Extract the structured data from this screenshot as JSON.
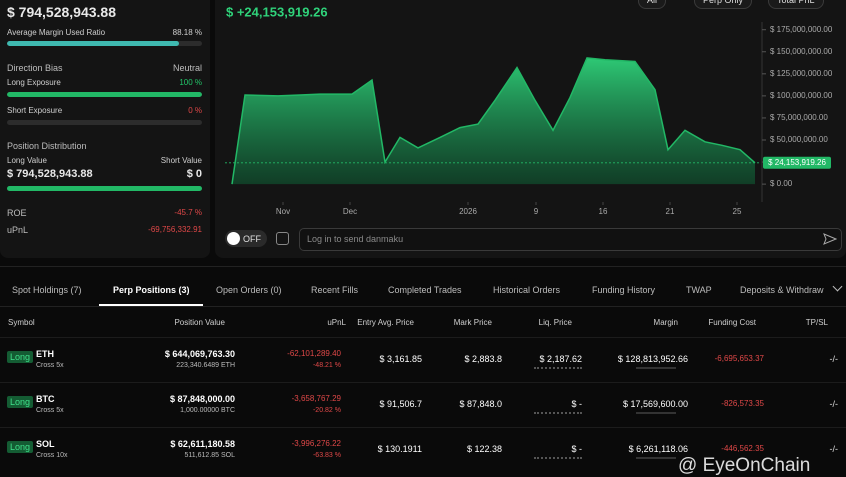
{
  "summary": {
    "total_value": "$ 794,528,943.88",
    "margin_ratio": {
      "name": "Average Margin Used Ratio",
      "value": 88.18,
      "label": "88.18 %"
    },
    "direction_bias": {
      "label": "Direction Bias",
      "value": "Neutral"
    },
    "long_exposure": {
      "name": "Long Exposure",
      "value": 100,
      "label": "100 %"
    },
    "short_exposure": {
      "name": "Short Exposure",
      "value": 0,
      "label": "0 %"
    },
    "distribution": {
      "title": "Position Distribution",
      "long_label": "Long Value",
      "short_label": "Short Value",
      "long_value": "$ 794,528,943.88",
      "short_value": "$ 0"
    },
    "roe": {
      "label": "ROE",
      "value": "-45.7 %"
    },
    "upnl": {
      "label": "uPnL",
      "value": "-69,756,332.91"
    }
  },
  "filters": [
    "All",
    "Perp Only",
    "Total PnL"
  ],
  "chart_data": {
    "type": "area",
    "title": "$ +24,153,919.26",
    "color": "#22b866",
    "x": [
      0,
      1.3,
      4.6,
      6.8,
      8.8,
      12,
      14,
      15.3,
      16.8,
      18.6,
      20.8,
      22.8,
      24.6,
      26.3,
      28.5,
      30.3,
      32.1,
      33.8,
      35.5,
      37.3,
      40.3,
      42.3,
      43.6,
      45.3,
      47.3,
      49,
      50.8,
      52.3
    ],
    "values": [
      0,
      101000000,
      100000000,
      101000000,
      102000000,
      102000000,
      118000000,
      25000000,
      53000000,
      41000000,
      53000000,
      64000000,
      68000000,
      95000000,
      132000000,
      95000000,
      61000000,
      98000000,
      143000000,
      141000000,
      139000000,
      107000000,
      39000000,
      61000000,
      48000000,
      44000000,
      39000000,
      24153919.26
    ],
    "last_value_label": "$ 24,153,919.26",
    "xlim": [
      -0.7,
      52.8
    ],
    "xticks": [
      {
        "value": 5.1,
        "label": "Nov"
      },
      {
        "value": 11.8,
        "label": "Dec"
      },
      {
        "value": 23.6,
        "label": "2026"
      },
      {
        "value": 30.4,
        "label": "9"
      },
      {
        "value": 37.1,
        "label": "16"
      },
      {
        "value": 43.8,
        "label": "21"
      },
      {
        "value": 50.5,
        "label": "25"
      }
    ],
    "ylim": [
      -18000000,
      186000000
    ],
    "yticks": [
      {
        "value": 0,
        "label": "$ 0.00"
      },
      {
        "value": 25000000,
        "label": "$ 25,000,000.00"
      },
      {
        "value": 50000000,
        "label": "$ 50,000,000.00"
      },
      {
        "value": 75000000,
        "label": "$ 75,000,000.00"
      },
      {
        "value": 100000000,
        "label": "$ 100,000,000.00"
      },
      {
        "value": 125000000,
        "label": "$ 125,000,000.00"
      },
      {
        "value": 150000000,
        "label": "$ 150,000,000.00"
      },
      {
        "value": 175000000,
        "label": "$ 175,000,000.00"
      }
    ]
  },
  "danmaku": {
    "toggle": "OFF",
    "placeholder": "Log in to send danmaku"
  },
  "tabs": [
    "Spot Holdings (7)",
    "Perp Positions (3)",
    "Open Orders (0)",
    "Recent Fills",
    "Completed Trades",
    "Historical Orders",
    "Funding History",
    "TWAP",
    "Deposits & Withdraw"
  ],
  "table": {
    "columns": [
      "Symbol",
      "Position Value",
      "uPnL",
      "Entry Avg. Price",
      "Mark Price",
      "Liq. Price",
      "Margin",
      "Funding Cost",
      "TP/SL"
    ],
    "rows": [
      {
        "side": "Long",
        "symbol": "ETH",
        "mode": "Cross 5x",
        "position_value": "$ 644,069,763.30",
        "size": "223,340.6489 ETH",
        "upnl": "-62,101,289.40",
        "upnl_pct": "-48.21 %",
        "entry": "$ 3,161.85",
        "mark": "$ 2,883.8",
        "liq": "$ 2,187.62",
        "margin": "$ 128,813,952.66",
        "funding": "-6,695,653.37",
        "tpsl": "-/-"
      },
      {
        "side": "Long",
        "symbol": "BTC",
        "mode": "Cross 5x",
        "position_value": "$ 87,848,000.00",
        "size": "1,000.00000 BTC",
        "upnl": "-3,658,767.29",
        "upnl_pct": "-20.82 %",
        "entry": "$ 91,506.7",
        "mark": "$ 87,848.0",
        "liq": "$ -",
        "margin": "$ 17,569,600.00",
        "funding": "-826,573.35",
        "tpsl": "-/-"
      },
      {
        "side": "Long",
        "symbol": "SOL",
        "mode": "Cross 10x",
        "position_value": "$ 62,611,180.58",
        "size": "511,612.85 SOL",
        "upnl": "-3,996,276.22",
        "upnl_pct": "-63.83 %",
        "entry": "$ 130.1911",
        "mark": "$ 122.38",
        "liq": "$ -",
        "margin": "$ 6,261,118.06",
        "funding": "-446,562.35",
        "tpsl": "-/-"
      }
    ]
  },
  "watermark": "@ EyeOnChain"
}
